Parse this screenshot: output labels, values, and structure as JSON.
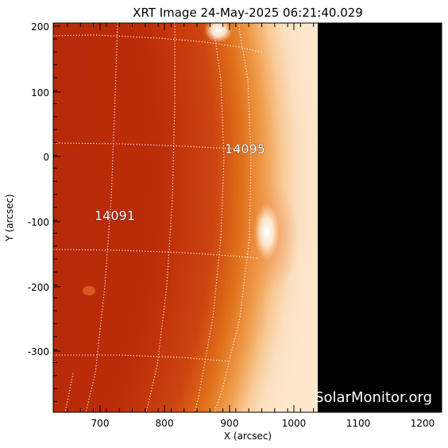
{
  "title": "XRT Image 24-May-2025 06:21:40.029",
  "x_axis": {
    "label": "X (arcsec)",
    "ticks": [
      "700",
      "800",
      "900",
      "1000",
      "1100",
      "1200"
    ]
  },
  "y_axis": {
    "label": "Y (arcsec)",
    "ticks": [
      "200",
      "100",
      "0",
      "-100",
      "-200",
      "-300"
    ]
  },
  "regions": [
    {
      "label": "14095"
    },
    {
      "label": "14091"
    }
  ],
  "watermark": "SolarMonitor.org",
  "colors": {
    "disk_dark": "#b82a08",
    "disk_mid": "#d2500f",
    "limb_bright": "#fff1d8",
    "background": "#000000",
    "grid": "#ffffff"
  }
}
